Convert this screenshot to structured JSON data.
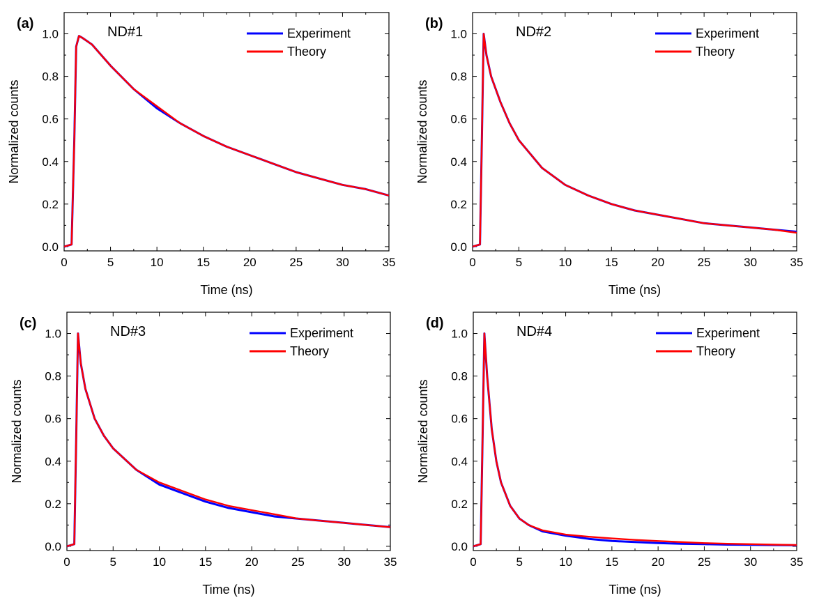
{
  "colors": {
    "experiment": "#0000ff",
    "theory": "#ff0000"
  },
  "chart_data": [
    {
      "type": "line",
      "panel_label": "(a)",
      "annotation": "ND#1",
      "xlabel": "Time (ns)",
      "ylabel": "Normalized counts",
      "xlim": [
        0,
        35
      ],
      "ylim": [
        -0.02,
        1.1
      ],
      "xticks": [
        "0",
        "5",
        "10",
        "15",
        "20",
        "25",
        "30",
        "35"
      ],
      "yticks": [
        "0.0",
        "0.2",
        "0.4",
        "0.6",
        "0.8",
        "1.0"
      ],
      "legend": "top-right",
      "x": [
        0,
        0.8,
        1.1,
        1.3,
        1.6,
        2,
        3,
        5,
        7.5,
        10,
        12.5,
        15,
        17.5,
        20,
        22.5,
        25,
        27.5,
        30,
        32.5,
        35
      ],
      "series": [
        {
          "name": "Experiment",
          "values": [
            0.0,
            0.01,
            0.5,
            0.94,
            0.99,
            0.98,
            0.95,
            0.85,
            0.74,
            0.65,
            0.58,
            0.52,
            0.47,
            0.43,
            0.39,
            0.35,
            0.32,
            0.29,
            0.27,
            0.24
          ]
        },
        {
          "name": "Theory",
          "values": [
            0.0,
            0.01,
            0.5,
            0.94,
            0.99,
            0.98,
            0.95,
            0.85,
            0.74,
            0.66,
            0.58,
            0.52,
            0.47,
            0.43,
            0.39,
            0.35,
            0.32,
            0.29,
            0.27,
            0.24
          ]
        }
      ]
    },
    {
      "type": "line",
      "panel_label": "(b)",
      "annotation": "ND#2",
      "xlabel": "Time (ns)",
      "ylabel": "Normalized counts",
      "xlim": [
        0,
        35
      ],
      "ylim": [
        -0.02,
        1.1
      ],
      "xticks": [
        "0",
        "5",
        "10",
        "15",
        "20",
        "25",
        "30",
        "35"
      ],
      "yticks": [
        "0.0",
        "0.2",
        "0.4",
        "0.6",
        "0.8",
        "1.0"
      ],
      "legend": "top-right",
      "x": [
        0,
        0.8,
        1.0,
        1.2,
        1.5,
        2,
        3,
        4,
        5,
        7.5,
        10,
        12.5,
        15,
        17.5,
        20,
        22.5,
        25,
        27.5,
        30,
        32.5,
        35
      ],
      "series": [
        {
          "name": "Experiment",
          "values": [
            0.0,
            0.01,
            0.5,
            1.0,
            0.9,
            0.8,
            0.68,
            0.58,
            0.5,
            0.37,
            0.29,
            0.24,
            0.2,
            0.17,
            0.15,
            0.13,
            0.11,
            0.1,
            0.09,
            0.08,
            0.07
          ]
        },
        {
          "name": "Theory",
          "values": [
            0.0,
            0.01,
            0.5,
            1.0,
            0.9,
            0.8,
            0.68,
            0.58,
            0.5,
            0.37,
            0.29,
            0.24,
            0.2,
            0.17,
            0.15,
            0.13,
            0.11,
            0.1,
            0.09,
            0.08,
            0.065
          ]
        }
      ]
    },
    {
      "type": "line",
      "panel_label": "(c)",
      "annotation": "ND#3",
      "xlabel": "Time (ns)",
      "ylabel": "Normalized counts",
      "xlim": [
        0,
        35
      ],
      "ylim": [
        -0.02,
        1.1
      ],
      "xticks": [
        "0",
        "5",
        "10",
        "15",
        "20",
        "25",
        "30",
        "35"
      ],
      "yticks": [
        "0.0",
        "0.2",
        "0.4",
        "0.6",
        "0.8",
        "1.0"
      ],
      "legend": "top-right",
      "x": [
        0,
        0.8,
        1.0,
        1.2,
        1.5,
        2,
        3,
        4,
        5,
        7.5,
        10,
        12.5,
        15,
        17.5,
        20,
        22.5,
        25,
        27.5,
        30,
        32.5,
        35
      ],
      "series": [
        {
          "name": "Experiment",
          "values": [
            0.0,
            0.01,
            0.5,
            1.0,
            0.86,
            0.74,
            0.6,
            0.52,
            0.46,
            0.36,
            0.29,
            0.25,
            0.21,
            0.18,
            0.16,
            0.14,
            0.13,
            0.12,
            0.11,
            0.1,
            0.09
          ]
        },
        {
          "name": "Theory",
          "values": [
            0.0,
            0.01,
            0.5,
            1.0,
            0.86,
            0.74,
            0.6,
            0.52,
            0.46,
            0.36,
            0.3,
            0.26,
            0.22,
            0.19,
            0.17,
            0.15,
            0.13,
            0.12,
            0.11,
            0.1,
            0.09
          ]
        }
      ]
    },
    {
      "type": "line",
      "panel_label": "(d)",
      "annotation": "ND#4",
      "xlabel": "Time (ns)",
      "ylabel": "Normalized counts",
      "xlim": [
        0,
        35
      ],
      "ylim": [
        -0.02,
        1.1
      ],
      "xticks": [
        "0",
        "5",
        "10",
        "15",
        "20",
        "25",
        "30",
        "35"
      ],
      "yticks": [
        "0.0",
        "0.2",
        "0.4",
        "0.6",
        "0.8",
        "1.0"
      ],
      "legend": "top-right",
      "x": [
        0,
        0.8,
        1.0,
        1.2,
        1.5,
        2,
        2.5,
        3,
        4,
        5,
        6,
        7.5,
        10,
        12.5,
        15,
        17.5,
        20,
        22.5,
        25,
        27.5,
        30,
        32.5,
        35
      ],
      "series": [
        {
          "name": "Experiment",
          "values": [
            0.0,
            0.01,
            0.5,
            1.0,
            0.8,
            0.55,
            0.4,
            0.3,
            0.19,
            0.13,
            0.1,
            0.07,
            0.05,
            0.035,
            0.025,
            0.02,
            0.015,
            0.012,
            0.01,
            0.008,
            0.007,
            0.006,
            0.005
          ]
        },
        {
          "name": "Theory",
          "values": [
            0.0,
            0.01,
            0.5,
            1.0,
            0.8,
            0.55,
            0.4,
            0.3,
            0.19,
            0.13,
            0.1,
            0.075,
            0.055,
            0.045,
            0.037,
            0.03,
            0.025,
            0.02,
            0.015,
            0.012,
            0.01,
            0.008,
            0.006
          ]
        }
      ]
    }
  ]
}
